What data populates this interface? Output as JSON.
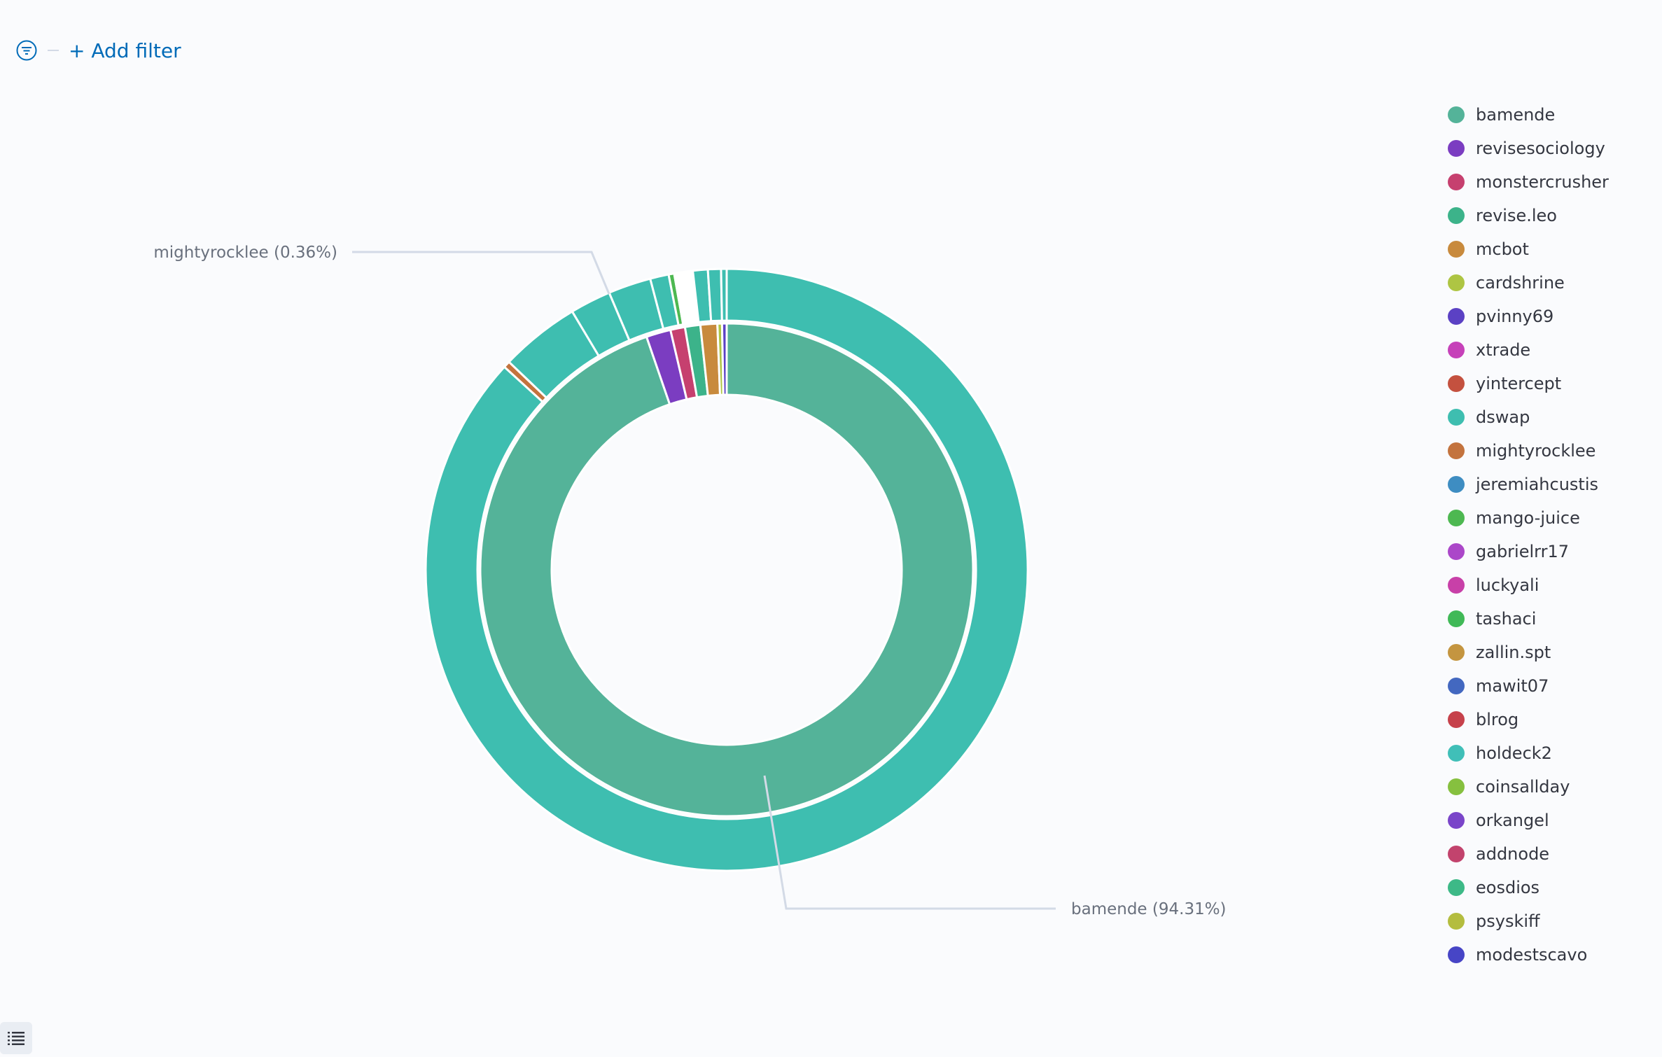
{
  "filter_bar": {
    "add_filter_label": "+ Add filter"
  },
  "chart_data": {
    "type": "pie",
    "donut": true,
    "legend_position": "right",
    "inner_ring": {
      "slices": [
        {
          "label": "bamende",
          "percent": 94.31,
          "color": "#54b399"
        },
        {
          "label": "revisesociology",
          "percent": 1.6,
          "color": "#7b3dc1"
        },
        {
          "label": "monstercrusher",
          "percent": 0.95,
          "color": "#c6406f"
        },
        {
          "label": "revise.leo",
          "percent": 1.0,
          "color": "#3cb38a"
        },
        {
          "label": "mcbot",
          "percent": 1.1,
          "color": "#c88a3d"
        },
        {
          "label": "cardshrine",
          "percent": 0.3,
          "color": "#aec543"
        },
        {
          "label": "pvinny69",
          "percent": 0.3,
          "color": "#5b41c4"
        }
      ]
    },
    "outer_ring": {
      "slices": [
        {
          "label": "dswap",
          "percent": 87.0,
          "color": "#3ebeb0"
        },
        {
          "label": "mightyrocklee",
          "percent": 0.36,
          "color": "#c3733e"
        },
        {
          "label": "dswap",
          "percent": 4.3,
          "color": "#3ebeb0"
        },
        {
          "label": "dswap",
          "percent": 2.2,
          "color": "#3ebeb0"
        },
        {
          "label": "dswap",
          "percent": 2.3,
          "color": "#3ebeb0"
        },
        {
          "label": "dswap",
          "percent": 1.0,
          "color": "#3ebeb0"
        },
        {
          "label": "mango-juice",
          "percent": 0.3,
          "color": "#4db851"
        },
        {
          "label": "xtrade",
          "percent": 1.0,
          "color": "#ffffff"
        },
        {
          "label": "dswap",
          "percent": 0.8,
          "color": "#3ebeb0"
        },
        {
          "label": "dswap",
          "percent": 0.7,
          "color": "#3ebeb0"
        },
        {
          "label": "dswap",
          "percent": 0.3,
          "color": "#3ebeb0"
        }
      ]
    },
    "callouts": [
      {
        "text": "mightyrocklee (0.36%)"
      },
      {
        "text": "bamende (94.31%)"
      }
    ],
    "legend": [
      {
        "label": "bamende",
        "color": "#54b399"
      },
      {
        "label": "revisesociology",
        "color": "#7b3dc1"
      },
      {
        "label": "monstercrusher",
        "color": "#c6406f"
      },
      {
        "label": "revise.leo",
        "color": "#3cb38a"
      },
      {
        "label": "mcbot",
        "color": "#c88a3d"
      },
      {
        "label": "cardshrine",
        "color": "#aec543"
      },
      {
        "label": "pvinny69",
        "color": "#5b41c4"
      },
      {
        "label": "xtrade",
        "color": "#c641b9"
      },
      {
        "label": "yintercept",
        "color": "#c4513f"
      },
      {
        "label": "dswap",
        "color": "#3ebeb0"
      },
      {
        "label": "mightyrocklee",
        "color": "#c3733e"
      },
      {
        "label": "jeremiahcustis",
        "color": "#3e8dc2"
      },
      {
        "label": "mango-juice",
        "color": "#4db851"
      },
      {
        "label": "gabrielrr17",
        "color": "#ab47c9"
      },
      {
        "label": "luckyali",
        "color": "#c840a8"
      },
      {
        "label": "tashaci",
        "color": "#40b957"
      },
      {
        "label": "zallin.spt",
        "color": "#c49540"
      },
      {
        "label": "mawit07",
        "color": "#4368c0"
      },
      {
        "label": "blrog",
        "color": "#c6414b"
      },
      {
        "label": "holdeck2",
        "color": "#40bfb8"
      },
      {
        "label": "coinsallday",
        "color": "#86c03f"
      },
      {
        "label": "orkangel",
        "color": "#7a45c9"
      },
      {
        "label": "addnode",
        "color": "#c2436d"
      },
      {
        "label": "eosdios",
        "color": "#3db987"
      },
      {
        "label": "psyskiff",
        "color": "#b4bd3f"
      },
      {
        "label": "modestscavo",
        "color": "#4745c6"
      }
    ]
  }
}
